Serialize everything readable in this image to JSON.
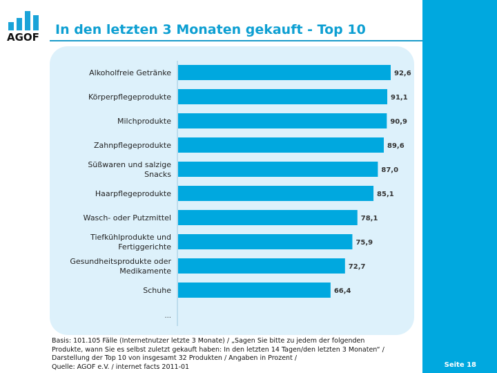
{
  "header": {
    "logo_text": "AGOF",
    "title": "In den letzten 3 Monaten gekauft - Top 10"
  },
  "colors": {
    "bar": "#00a8df",
    "panel": "#ddf1fb",
    "sidebar": "#00a8df",
    "title": "#0d9fd2"
  },
  "chart_data": {
    "type": "bar",
    "orientation": "horizontal",
    "categories": [
      [
        "Alkoholfreie Getränke"
      ],
      [
        "Körperpflegeprodukte"
      ],
      [
        "Milchprodukte"
      ],
      [
        "Zahnpflegeprodukte"
      ],
      [
        "Süßwaren und salzige",
        "Snacks"
      ],
      [
        "Haarpflegeprodukte"
      ],
      [
        "Wasch- oder Putzmittel"
      ],
      [
        "Tiefkühlprodukte und",
        "Fertiggerichte"
      ],
      [
        "Gesundheitsprodukte oder",
        "Medikamente"
      ],
      [
        "Schuhe"
      ]
    ],
    "values": [
      92.6,
      91.1,
      90.9,
      89.6,
      87.0,
      85.1,
      78.1,
      75.9,
      72.7,
      66.4
    ],
    "value_labels": [
      "92,6",
      "91,1",
      "90,9",
      "89,6",
      "87,0",
      "85,1",
      "78,1",
      "75,9",
      "72,7",
      "66,4"
    ],
    "more_label": "...",
    "xlim": [
      0,
      100
    ],
    "grid": false
  },
  "footer": {
    "lines": [
      "Basis: 101.105 Fälle (Internetnutzer letzte 3 Monate) / „Sagen Sie bitte zu jedem der folgenden",
      "Produkte, wann Sie es selbst zuletzt gekauft haben: In den letzten 14 Tagen/den letzten 3 Monaten“ /",
      "Darstellung der Top 10 von insgesamt 32 Produkten / Angaben in Prozent /",
      "Quelle: AGOF e.V. / internet facts 2011-01"
    ]
  },
  "page": "Seite 18"
}
